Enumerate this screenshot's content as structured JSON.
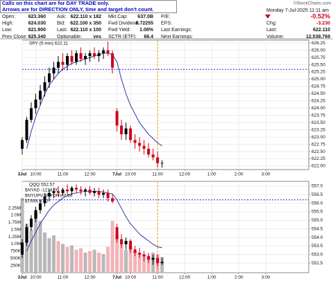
{
  "header": {
    "notes": [
      "Calls on this chart are for DAY TRADE only.",
      "Arrows are for DIRECTION ONLY, time and target don't count."
    ],
    "copyright": "©StockCharts.com",
    "timestamp": "Monday  7-Jul-2025 11:11 am",
    "quote": [
      [
        {
          "label": "Open:",
          "value": "623.360"
        },
        {
          "label": "Ask:",
          "value": "622.110 x 182"
        },
        {
          "label": "Mkt Cap:",
          "value": "637.0B"
        },
        {
          "label": "P/E:"
        },
        {
          "value": "-0.52%"
        }
      ],
      [
        {
          "label": "High:",
          "value": "624.030"
        },
        {
          "label": "Bid:",
          "value": "622.100 x 350"
        },
        {
          "label": "Fwd Dividend:",
          "value": "6.72255"
        },
        {
          "label": "EPS:"
        },
        {
          "label": "Chg:",
          "value": "-3.230"
        }
      ],
      [
        {
          "label": "Low:",
          "value": "621.900"
        },
        {
          "label": "Last:",
          "value": "622.110 x 100"
        },
        {
          "label": "Fwd Yield:",
          "value": "1.08%"
        },
        {
          "label": "Last Earnings:"
        },
        {
          "label": "Last:",
          "value": "622.110"
        }
      ],
      [
        {
          "label": "Prev Close:",
          "value": "625.340"
        },
        {
          "label": "Optionable:",
          "value": "yes"
        },
        {
          "label": "SCTR (ETF):",
          "value": "68.4"
        },
        {
          "label": "Next Earnings:"
        },
        {
          "label": "Volume:",
          "value": "12,538,769"
        }
      ]
    ]
  },
  "chart_data": [
    {
      "type": "candlestick",
      "title": "SPY (5 min) 622.11",
      "x": [
        0,
        2,
        4,
        6,
        8,
        10,
        12,
        14,
        16,
        18,
        20,
        22,
        24,
        26,
        28,
        30,
        32,
        34,
        36,
        38,
        40,
        42,
        44,
        46,
        48,
        50,
        52,
        54,
        56,
        58,
        60,
        62
      ],
      "open": [
        622.6,
        622.9,
        623.6,
        624.0,
        624.3,
        624.6,
        624.9,
        625.2,
        625.4,
        625.6,
        625.5,
        625.8,
        625.6,
        625.9,
        625.7,
        625.8,
        625.9,
        625.8,
        625.9,
        626.0,
        625.9,
        623.9,
        623.4,
        623.1,
        623.3,
        622.9,
        622.8,
        622.7,
        622.6,
        622.4,
        622.3,
        622.1
      ],
      "high": [
        623.0,
        623.7,
        624.2,
        624.5,
        624.8,
        625.1,
        625.4,
        625.6,
        625.8,
        625.9,
        625.9,
        626.0,
        626.0,
        626.1,
        625.9,
        626.0,
        626.1,
        626.0,
        626.1,
        626.3,
        626.0,
        624.0,
        623.6,
        623.5,
        623.4,
        623.1,
        623.0,
        622.9,
        622.8,
        622.6,
        622.5,
        622.2
      ],
      "low": [
        622.4,
        622.8,
        623.5,
        623.8,
        624.1,
        624.4,
        624.7,
        625.0,
        625.2,
        625.3,
        625.3,
        625.5,
        625.5,
        625.6,
        625.5,
        625.6,
        625.7,
        625.6,
        625.7,
        625.8,
        625.2,
        623.2,
        622.9,
        622.9,
        622.8,
        622.6,
        622.5,
        622.4,
        622.3,
        622.2,
        621.95,
        621.95
      ],
      "close": [
        622.9,
        623.6,
        624.0,
        624.3,
        624.6,
        624.9,
        625.2,
        625.4,
        625.6,
        625.5,
        625.8,
        625.6,
        625.9,
        625.7,
        625.8,
        625.9,
        625.8,
        625.9,
        626.0,
        625.9,
        625.4,
        623.4,
        623.1,
        623.3,
        622.9,
        622.8,
        622.7,
        622.6,
        622.4,
        622.3,
        622.1,
        622.11
      ],
      "up_color": "#000000",
      "down_color": "#d0021b",
      "ma": {
        "color": "#3333aa",
        "values": [
          null,
          622.6,
          623.2,
          623.7,
          624.1,
          624.5,
          624.8,
          625.0,
          625.2,
          625.35,
          625.45,
          625.55,
          625.6,
          625.65,
          625.7,
          625.75,
          625.8,
          625.85,
          625.9,
          625.9,
          625.85,
          625.6,
          625.0,
          624.5,
          624.1,
          623.8,
          623.5,
          623.3,
          623.1,
          622.95,
          622.8,
          622.7
        ]
      },
      "ref_line": 625.34,
      "ref_color": "#2222cc",
      "vline": 60,
      "vline_color": "#f0a000",
      "xlim": [
        0,
        127
      ],
      "xticks": [
        {
          "value": 0,
          "label": "3Jul"
        },
        {
          "value": 6,
          "label": "10:00"
        },
        {
          "value": 18,
          "label": "11:00"
        },
        {
          "value": 30,
          "label": "12:00"
        },
        {
          "value": 42,
          "label": "7Jul"
        },
        {
          "value": 48,
          "label": "10:00"
        },
        {
          "value": 60,
          "label": "11:00"
        },
        {
          "value": 72,
          "label": "12:00"
        },
        {
          "value": 84,
          "label": "1:00"
        },
        {
          "value": 96,
          "label": "2:00"
        },
        {
          "value": 108,
          "label": "3:00"
        }
      ],
      "ylim": [
        621.88,
        626.35
      ],
      "yticks": [
        626.25,
        {
          "value": 626,
          "label": "626.00"
        },
        625.75,
        {
          "value": 625.5,
          "label": "625.50"
        },
        625.25,
        {
          "value": 625,
          "label": "625.00"
        },
        624.75,
        {
          "value": 624.5,
          "label": "624.50"
        },
        624.25,
        {
          "value": 624,
          "label": "624.00"
        },
        623.75,
        {
          "value": 623.5,
          "label": "623.50"
        },
        623.25,
        {
          "value": 623,
          "label": "623.00"
        },
        622.75,
        {
          "value": 622.5,
          "label": "622.50"
        },
        622.25,
        {
          "value": 622,
          "label": "622.00"
        }
      ],
      "grid": true
    },
    {
      "type": "candlestick",
      "title": "QQQ 552.57",
      "annotations": [
        "$NYAD -1218.00",
        "$NYUPV:$NYDNV 0.64",
        "$TRIN 0.60"
      ],
      "x": [
        0,
        2,
        4,
        6,
        8,
        10,
        12,
        14,
        16,
        18,
        20,
        22,
        24,
        26,
        28,
        30,
        32,
        34,
        36,
        38,
        40,
        42,
        44,
        46,
        48,
        50,
        52,
        54,
        56,
        58,
        60,
        62
      ],
      "open": [
        553.0,
        553.7,
        554.6,
        555.1,
        555.6,
        556.0,
        556.4,
        556.6,
        556.7,
        556.6,
        556.8,
        556.7,
        556.9,
        556.8,
        556.7,
        556.8,
        556.6,
        556.7,
        556.5,
        556.6,
        556.3,
        554.6,
        553.9,
        553.6,
        553.8,
        553.3,
        553.1,
        553.0,
        552.9,
        552.7,
        552.8,
        552.5
      ],
      "high": [
        553.9,
        554.8,
        555.3,
        555.8,
        556.2,
        556.6,
        556.8,
        556.9,
        557.0,
        556.9,
        557.1,
        557.0,
        557.1,
        557.0,
        556.9,
        557.0,
        556.9,
        556.9,
        556.8,
        556.8,
        556.5,
        554.8,
        554.2,
        554.0,
        553.9,
        553.5,
        553.4,
        553.2,
        553.1,
        553.0,
        553.0,
        552.8
      ],
      "low": [
        552.8,
        553.5,
        554.4,
        554.9,
        555.4,
        555.8,
        556.1,
        556.3,
        556.4,
        556.4,
        556.5,
        556.5,
        556.6,
        556.5,
        556.4,
        556.5,
        556.4,
        556.3,
        556.3,
        556.1,
        556.0,
        553.7,
        553.4,
        553.3,
        553.1,
        552.9,
        552.8,
        552.6,
        552.5,
        552.4,
        552.3,
        552.4
      ],
      "close": [
        553.7,
        554.6,
        555.1,
        555.6,
        556.0,
        556.4,
        556.6,
        556.7,
        556.6,
        556.8,
        556.7,
        556.9,
        556.8,
        556.7,
        556.8,
        556.6,
        556.7,
        556.5,
        556.6,
        556.3,
        556.1,
        553.9,
        553.6,
        553.8,
        553.3,
        553.1,
        553.0,
        552.9,
        552.7,
        552.8,
        552.5,
        552.57
      ],
      "up_color": "#000000",
      "down_color": "#d0021b",
      "ma": {
        "color": "#3333aa",
        "values": [
          null,
          553.2,
          553.8,
          554.3,
          554.8,
          555.2,
          555.6,
          555.9,
          556.1,
          556.3,
          556.45,
          556.55,
          556.6,
          556.65,
          556.7,
          556.7,
          556.7,
          556.7,
          556.65,
          556.6,
          556.55,
          556.2,
          555.7,
          555.2,
          554.8,
          554.5,
          554.2,
          554.0,
          553.8,
          553.6,
          553.45,
          553.4
        ]
      },
      "ref_line": 556.2,
      "ref_color": "#2222cc",
      "vline": 60,
      "vline_color": "#f0a000",
      "volume": {
        "up_color": "#b8b8b8",
        "down_color": "#f2b3b8",
        "values": [
          2600000,
          1700000,
          1500000,
          2100000,
          1800000,
          1400000,
          1200000,
          1300000,
          1100000,
          1000000,
          900000,
          950000,
          800000,
          850000,
          700000,
          750000,
          800000,
          700000,
          650000,
          900000,
          1800000,
          1300000,
          1000000,
          800000,
          900000,
          750000,
          700000,
          650000,
          600000,
          700000,
          650000,
          550000
        ],
        "ylim": [
          0,
          3180000
        ],
        "yticks": [
          {
            "value": 2250000,
            "label": "2.25M"
          },
          {
            "value": 2000000,
            "label": "2.0M"
          },
          {
            "value": 1750000,
            "label": "1.75M"
          },
          {
            "value": 1500000,
            "label": "1.5M"
          },
          {
            "value": 1250000,
            "label": "1.25M"
          },
          {
            "value": 1000000,
            "label": "1.0M"
          },
          {
            "value": 750000,
            "label": "750K"
          },
          {
            "value": 500000,
            "label": "500K"
          },
          {
            "value": 250000,
            "label": "250K"
          }
        ]
      },
      "xlim": [
        0,
        127
      ],
      "xticks": [
        {
          "value": 0,
          "label": "3Jul"
        },
        {
          "value": 6,
          "label": "10:00"
        },
        {
          "value": 18,
          "label": "11:00"
        },
        {
          "value": 30,
          "label": "12:00"
        },
        {
          "value": 42,
          "label": "7Jul"
        },
        {
          "value": 48,
          "label": "10:00"
        },
        {
          "value": 60,
          "label": "11:00"
        },
        {
          "value": 72,
          "label": "12:00"
        },
        {
          "value": 84,
          "label": "1:00"
        },
        {
          "value": 96,
          "label": "2:00"
        },
        {
          "value": 108,
          "label": "3:00"
        }
      ],
      "ylim": [
        551.94,
        557.28
      ],
      "yticks": [
        {
          "value": 557,
          "label": "557.0"
        },
        556.5,
        {
          "value": 556,
          "label": "556.0"
        },
        555.5,
        {
          "value": 555,
          "label": "555.0"
        },
        554.5,
        {
          "value": 554,
          "label": "554.0"
        },
        553.5,
        {
          "value": 553,
          "label": "553.0"
        },
        552.5
      ],
      "grid": true
    }
  ]
}
